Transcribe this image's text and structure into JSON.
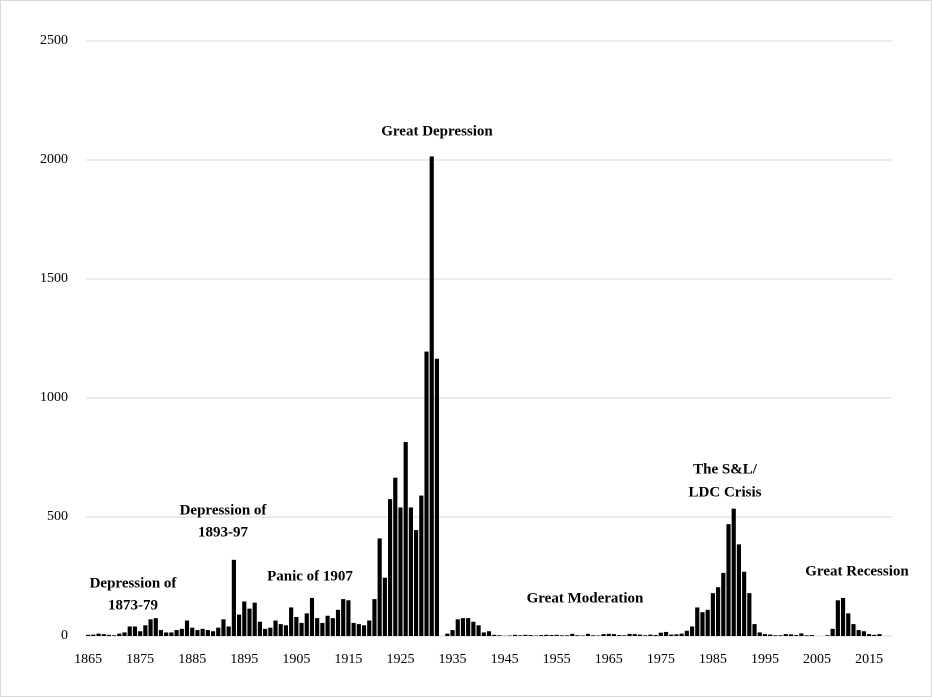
{
  "chart_data": {
    "type": "bar",
    "color": "#000000",
    "grid": true,
    "ylim": [
      0,
      2500
    ],
    "yticks": [
      0,
      500,
      1000,
      1500,
      2000,
      2500
    ],
    "xlim": [
      1864.6,
      2019.4
    ],
    "xticks": [
      1865,
      1875,
      1885,
      1895,
      1905,
      1915,
      1925,
      1935,
      1945,
      1955,
      1965,
      1975,
      1985,
      1995,
      2005,
      2015
    ],
    "annotations": [
      [
        "Depression of",
        "1873-79"
      ],
      [
        "Depression of",
        "1893-97"
      ],
      [
        "Panic of 1907"
      ],
      [
        "Great Depression"
      ],
      [
        "Great Moderation"
      ],
      [
        "The S&L/",
        "LDC Crisis"
      ],
      [
        "Great Recession"
      ]
    ],
    "x": [
      1865,
      1866,
      1867,
      1868,
      1869,
      1870,
      1871,
      1872,
      1873,
      1874,
      1875,
      1876,
      1877,
      1878,
      1879,
      1880,
      1881,
      1882,
      1883,
      1884,
      1885,
      1886,
      1887,
      1888,
      1889,
      1890,
      1891,
      1892,
      1893,
      1894,
      1895,
      1896,
      1897,
      1898,
      1899,
      1900,
      1901,
      1902,
      1903,
      1904,
      1905,
      1906,
      1907,
      1908,
      1909,
      1910,
      1911,
      1912,
      1913,
      1914,
      1915,
      1916,
      1917,
      1918,
      1919,
      1920,
      1921,
      1922,
      1923,
      1924,
      1925,
      1926,
      1927,
      1928,
      1929,
      1930,
      1931,
      1932,
      1933,
      1934,
      1935,
      1936,
      1937,
      1938,
      1939,
      1940,
      1941,
      1942,
      1943,
      1944,
      1945,
      1946,
      1947,
      1948,
      1949,
      1950,
      1951,
      1952,
      1953,
      1954,
      1955,
      1956,
      1957,
      1958,
      1959,
      1960,
      1961,
      1962,
      1963,
      1964,
      1965,
      1966,
      1967,
      1968,
      1969,
      1970,
      1971,
      1972,
      1973,
      1974,
      1975,
      1976,
      1977,
      1978,
      1979,
      1980,
      1981,
      1982,
      1983,
      1984,
      1985,
      1986,
      1987,
      1988,
      1989,
      1990,
      1991,
      1992,
      1993,
      1994,
      1995,
      1996,
      1997,
      1998,
      1999,
      2000,
      2001,
      2002,
      2003,
      2004,
      2005,
      2006,
      2007,
      2008,
      2009,
      2010,
      2011,
      2012,
      2013,
      2014,
      2015,
      2016,
      2017,
      2018
    ],
    "values": [
      5,
      6,
      10,
      8,
      5,
      3,
      10,
      15,
      40,
      40,
      20,
      45,
      70,
      75,
      25,
      15,
      15,
      25,
      30,
      65,
      35,
      25,
      30,
      25,
      20,
      35,
      70,
      40,
      320,
      90,
      145,
      115,
      140,
      60,
      30,
      35,
      65,
      50,
      45,
      120,
      80,
      55,
      95,
      160,
      75,
      55,
      85,
      75,
      110,
      155,
      150,
      55,
      50,
      45,
      65,
      155,
      410,
      245,
      575,
      665,
      540,
      815,
      540,
      445,
      590,
      1195,
      2015,
      1165,
      null,
      10,
      25,
      70,
      75,
      75,
      60,
      45,
      15,
      20,
      5,
      3,
      1,
      2,
      5,
      3,
      5,
      4,
      2,
      4,
      5,
      4,
      5,
      3,
      3,
      9,
      3,
      2,
      9,
      3,
      2,
      8,
      9,
      8,
      4,
      3,
      9,
      8,
      6,
      3,
      6,
      4,
      14,
      17,
      6,
      7,
      10,
      22,
      40,
      120,
      100,
      110,
      180,
      205,
      265,
      470,
      535,
      385,
      270,
      180,
      50,
      15,
      8,
      6,
      3,
      3,
      8,
      7,
      4,
      11,
      3,
      4,
      0,
      0,
      3,
      30,
      150,
      160,
      95,
      50,
      25,
      20,
      8,
      5,
      8,
      0
    ]
  }
}
